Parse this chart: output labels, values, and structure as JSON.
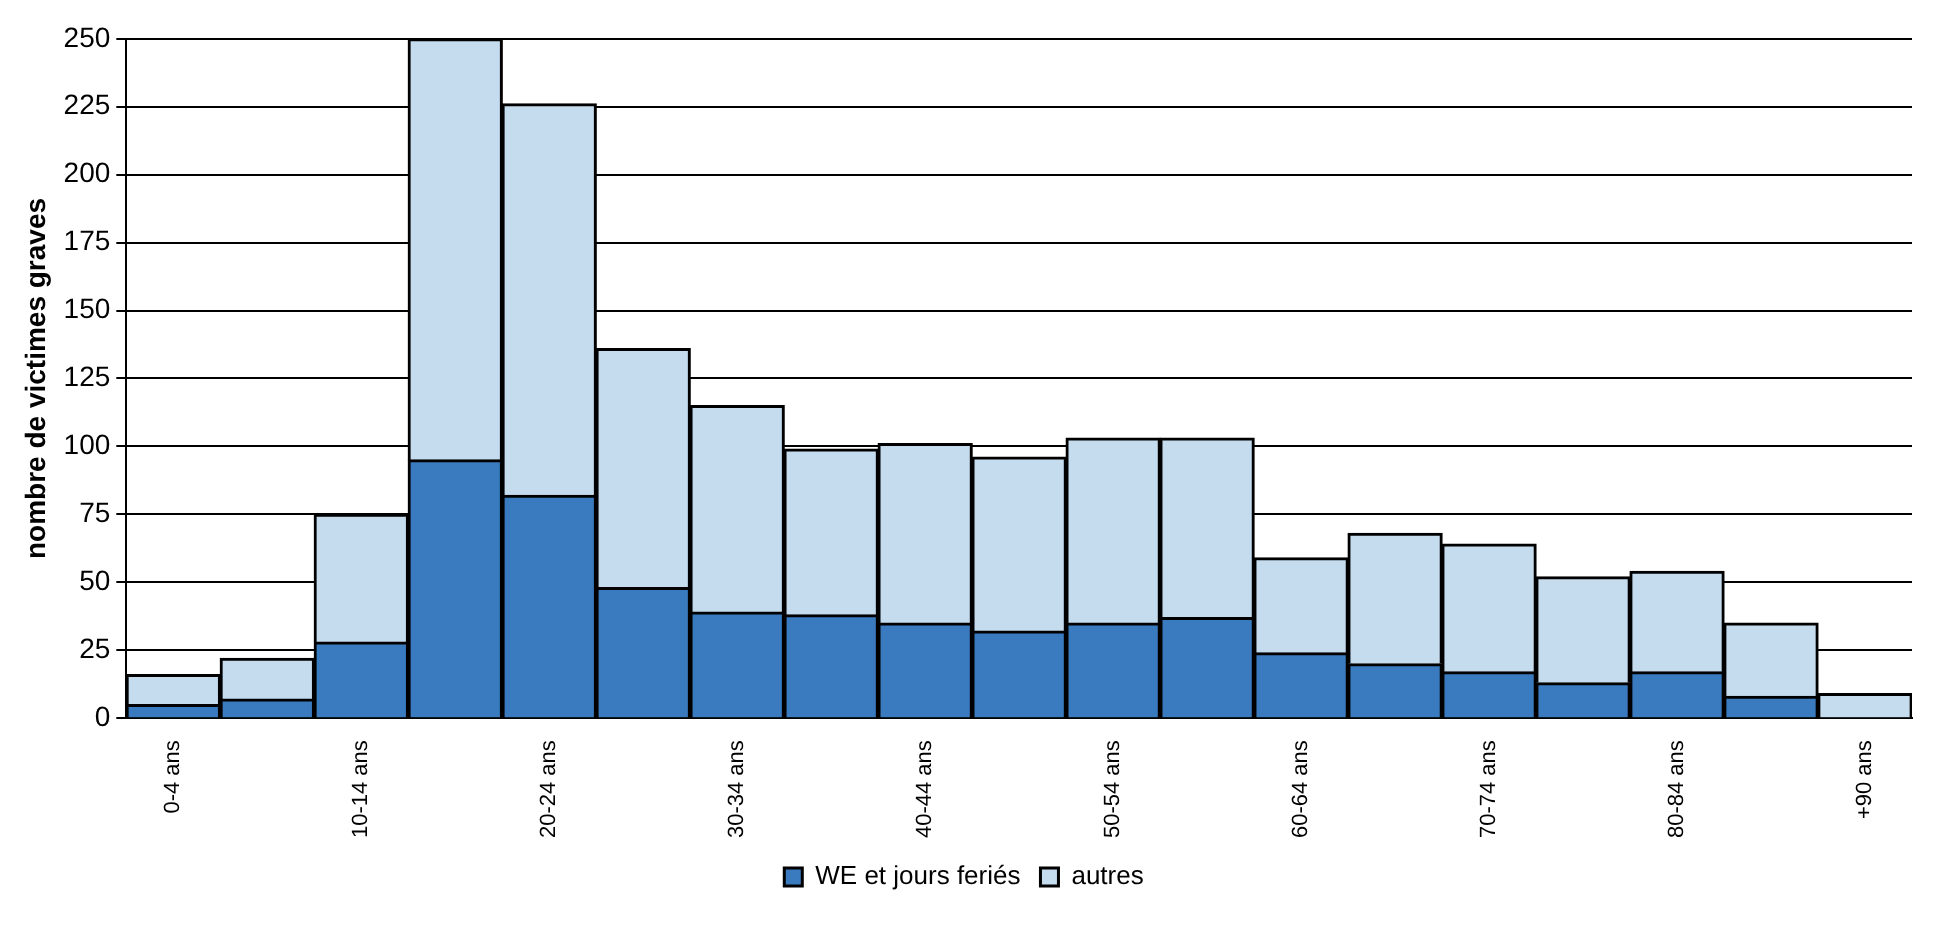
{
  "chart_data": {
    "type": "bar",
    "stacked": true,
    "ylabel": "nombre de victimes graves",
    "categories": [
      "0-4 ans",
      null,
      "10-14 ans",
      null,
      "20-24 ans",
      null,
      "30-34 ans",
      null,
      "40-44 ans",
      null,
      "50-54 ans",
      null,
      "60-64 ans",
      null,
      "70-74 ans",
      null,
      "80-84 ans",
      null,
      "+90 ans"
    ],
    "series": [
      {
        "name": "WE et jours feriés",
        "color": "#3a7bbf",
        "values": [
          5,
          7,
          28,
          95,
          82,
          48,
          39,
          38,
          35,
          32,
          35,
          37,
          24,
          20,
          17,
          13,
          17,
          8,
          0
        ]
      },
      {
        "name": "autres",
        "color": "#c5dbee",
        "values": [
          11,
          15,
          47,
          155,
          144,
          88,
          76,
          61,
          66,
          64,
          68,
          66,
          35,
          48,
          47,
          39,
          37,
          27,
          9
        ]
      }
    ],
    "ylim": [
      0,
      250
    ],
    "yticks": [
      0,
      25,
      50,
      75,
      100,
      125,
      150,
      175,
      200,
      225,
      250
    ],
    "grid": "y",
    "legend": "bottom"
  }
}
